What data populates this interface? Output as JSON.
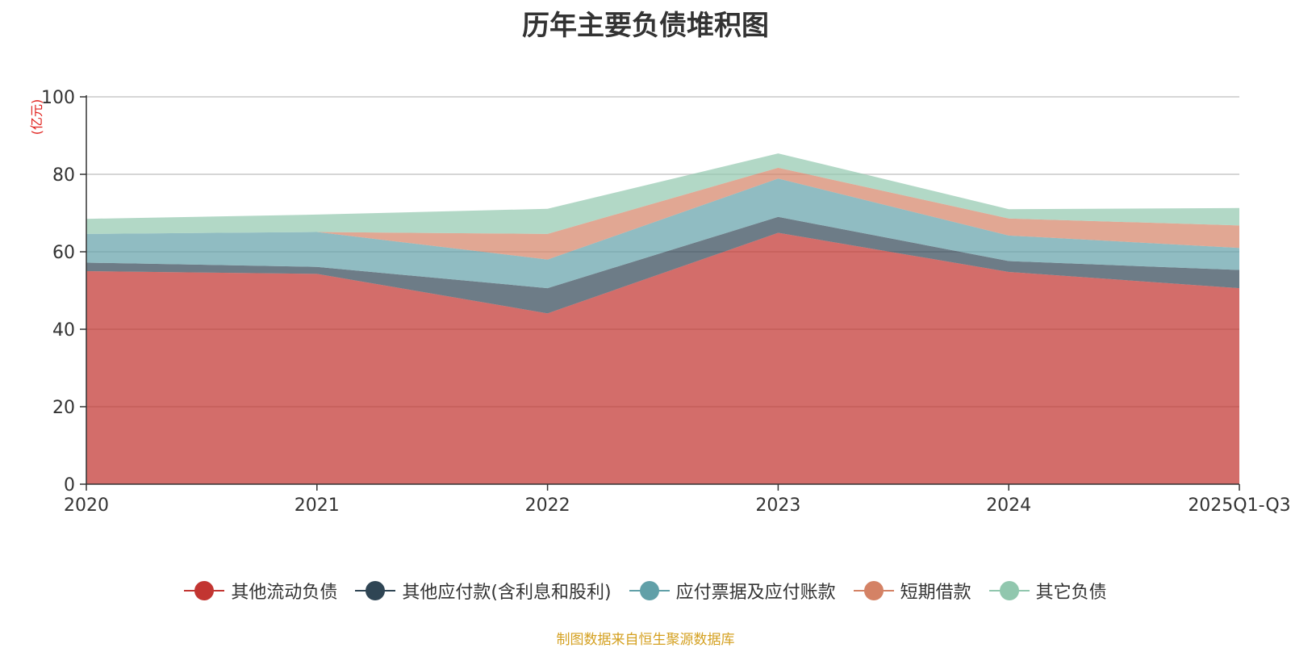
{
  "chart_data": {
    "type": "area",
    "stacked": true,
    "title": "历年主要负债堆积图",
    "ylabel": "(亿元)",
    "xlabel": "",
    "categories": [
      "2020",
      "2021",
      "2022",
      "2023",
      "2024",
      "2025Q1-Q3"
    ],
    "ylim": [
      0,
      100
    ],
    "yticks": [
      0,
      20,
      40,
      60,
      80,
      100
    ],
    "grid": true,
    "legend_position": "bottom",
    "series": [
      {
        "name": "其他流动负债",
        "color": "#c23531",
        "values": [
          55.0,
          54.3,
          44.1,
          64.9,
          54.8,
          50.6
        ]
      },
      {
        "name": "其他应付款(含利息和股利)",
        "color": "#2f4554",
        "values": [
          2.2,
          1.8,
          6.5,
          4.1,
          2.8,
          4.7
        ]
      },
      {
        "name": "应付票据及应付账款",
        "color": "#61a0a8",
        "values": [
          7.4,
          9.0,
          7.4,
          9.9,
          6.6,
          5.7
        ]
      },
      {
        "name": "短期借款",
        "color": "#d48265",
        "values": [
          0.0,
          0.0,
          6.6,
          2.8,
          4.4,
          5.8
        ]
      },
      {
        "name": "其它负债",
        "color": "#91c7ae",
        "values": [
          3.9,
          4.5,
          6.5,
          3.7,
          2.4,
          4.5
        ]
      }
    ]
  },
  "source_note": "制图数据来自恒生聚源数据库"
}
